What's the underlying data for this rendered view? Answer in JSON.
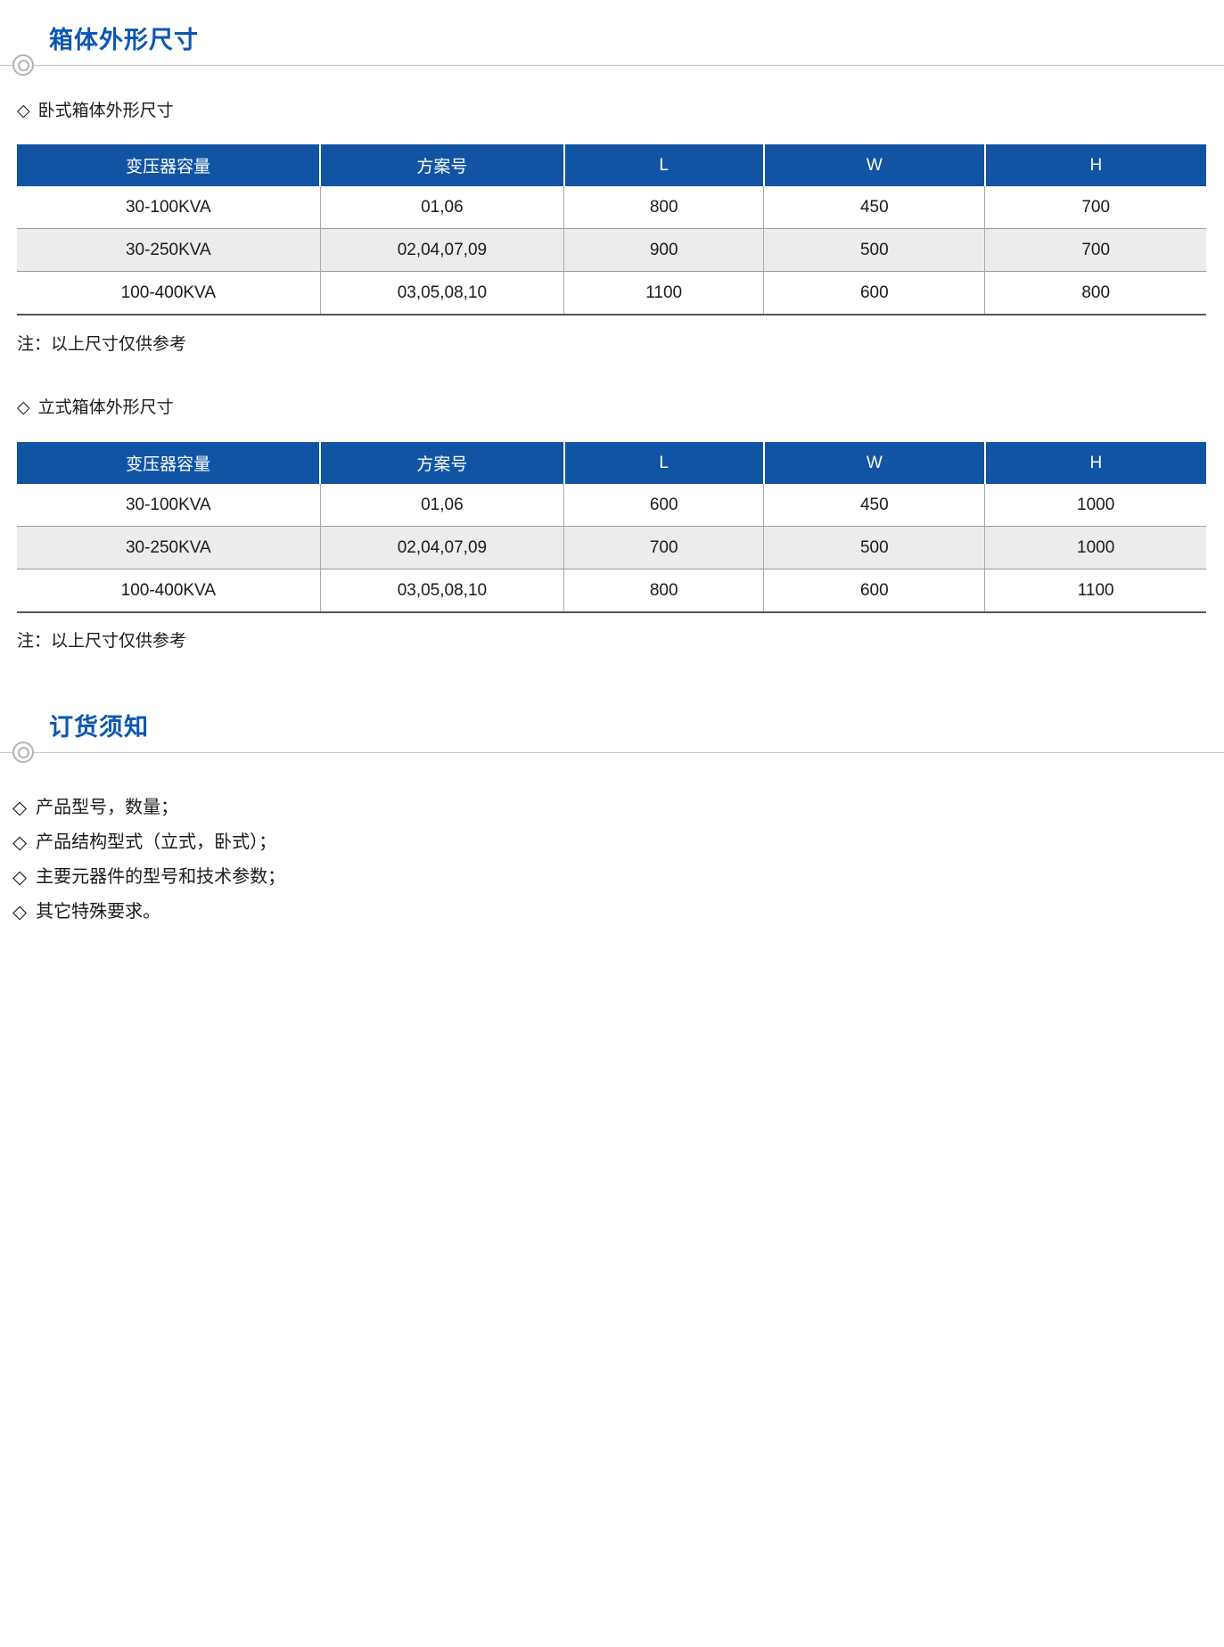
{
  "bullet_char": "◇",
  "dimension_section": {
    "title": "箱体外形尺寸",
    "subsections": [
      {
        "label": "卧式箱体外形尺寸",
        "note": "注：以上尺寸仅供参考",
        "table": {
          "headers": [
            "变压器容量",
            "方案号",
            "L",
            "W",
            "H"
          ],
          "rows": [
            [
              "30-100KVA",
              "01,06",
              "800",
              "450",
              "700"
            ],
            [
              "30-250KVA",
              "02,04,07,09",
              "900",
              "500",
              "700"
            ],
            [
              "100-400KVA",
              "03,05,08,10",
              "1100",
              "600",
              "800"
            ]
          ]
        }
      },
      {
        "label": "立式箱体外形尺寸",
        "note": "注：以上尺寸仅供参考",
        "table": {
          "headers": [
            "变压器容量",
            "方案号",
            "L",
            "W",
            "H"
          ],
          "rows": [
            [
              "30-100KVA",
              "01,06",
              "600",
              "450",
              "1000"
            ],
            [
              "30-250KVA",
              "02,04,07,09",
              "700",
              "500",
              "1000"
            ],
            [
              "100-400KVA",
              "03,05,08,10",
              "800",
              "600",
              "1100"
            ]
          ]
        }
      }
    ]
  },
  "ordering_section": {
    "title": "订货须知",
    "items": [
      "产品型号，数量；",
      "产品结构型式（立式，卧式）；",
      "主要元器件的型号和技术参数；",
      "其它特殊要求。"
    ]
  },
  "colors": {
    "title_blue": "#0b57b2",
    "table_header_blue": "#1254a4",
    "stripe_gray": "#ececec"
  }
}
